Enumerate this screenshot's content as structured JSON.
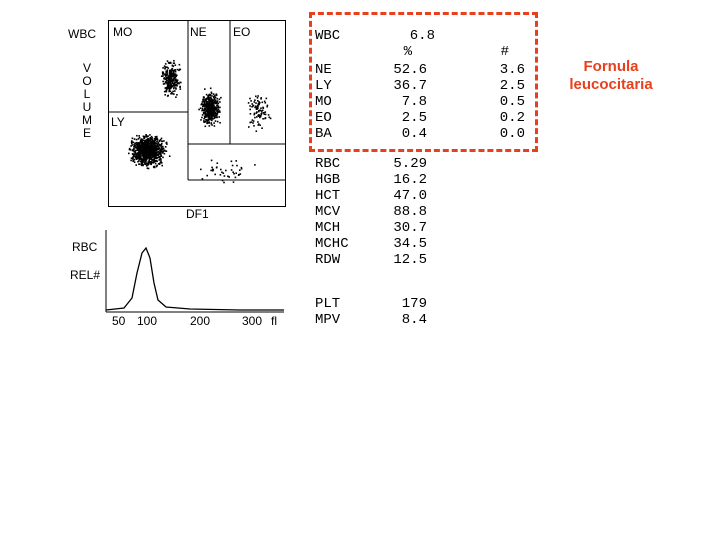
{
  "scatter": {
    "y_label": "WBC",
    "volume_letters": [
      "V",
      "O",
      "L",
      "U",
      "M",
      "E"
    ],
    "regions": {
      "mo": "MO",
      "ne": "NE",
      "eo": "EO",
      "ly": "LY"
    },
    "x_label": "DF1"
  },
  "histogram": {
    "title": "RBC",
    "y_label": "REL#",
    "ticks": [
      "50",
      "100",
      "200",
      "300",
      "fl"
    ]
  },
  "results": {
    "wbc": {
      "label": "WBC",
      "value": "6.8"
    },
    "header": {
      "pct": "%",
      "abs": "#"
    },
    "differential": [
      {
        "label": "NE",
        "pct": "52.6",
        "abs": "3.6"
      },
      {
        "label": "LY",
        "pct": "36.7",
        "abs": "2.5"
      },
      {
        "label": "MO",
        "pct": "7.8",
        "abs": "0.5"
      },
      {
        "label": "EO",
        "pct": "2.5",
        "abs": "0.2"
      },
      {
        "label": "BA",
        "pct": "0.4",
        "abs": "0.0"
      }
    ],
    "red_indices": [
      {
        "label": "RBC",
        "value": "5.29"
      },
      {
        "label": "HGB",
        "value": "16.2"
      },
      {
        "label": "HCT",
        "value": "47.0"
      },
      {
        "label": "MCV",
        "value": "88.8"
      },
      {
        "label": "MCH",
        "value": "30.7"
      },
      {
        "label": "MCHC",
        "value": "34.5"
      },
      {
        "label": "RDW",
        "value": "12.5"
      }
    ],
    "platelets": [
      {
        "label": "PLT",
        "value": "179"
      },
      {
        "label": "MPV",
        "value": "8.4"
      }
    ]
  },
  "annotation": {
    "line1": "Fornula",
    "line2": "leucocitaria"
  },
  "colors": {
    "highlight": "#e8401c",
    "ink": "#000000"
  }
}
